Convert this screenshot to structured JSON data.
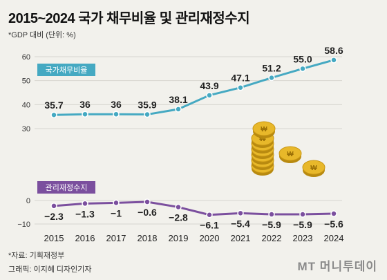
{
  "header": {
    "title": "2015~2024 국가 채무비율 및 관리재정수지",
    "subtitle": "*GDP 대비 (단위: %)"
  },
  "footer": {
    "source": "*자료: 기획재정부",
    "credit": "그래픽: 이지혜 디자인기자",
    "logo": "MT 머니투데이"
  },
  "colors": {
    "debt": "#45a9c2",
    "balance": "#7b4f9e",
    "coin": "#e8b82a"
  },
  "chart_data": [
    {
      "type": "line",
      "x": [
        "2015",
        "2016",
        "2017",
        "2018",
        "2019",
        "2020",
        "2021",
        "2022",
        "2023",
        "2024"
      ],
      "series": [
        {
          "name": "국가채무비율",
          "values": [
            35.7,
            36,
            36,
            35.9,
            38.1,
            43.9,
            47.1,
            51.2,
            55.0,
            58.6
          ],
          "labels": [
            "35.7",
            "36",
            "36",
            "35.9",
            "38.1",
            "43.9",
            "47.1",
            "51.2",
            "55.0",
            "58.6"
          ]
        }
      ],
      "yticks": [
        30,
        40,
        50,
        60
      ],
      "ylim": [
        30,
        60
      ],
      "grid": true
    },
    {
      "type": "line",
      "x": [
        "2015",
        "2016",
        "2017",
        "2018",
        "2019",
        "2020",
        "2021",
        "2022",
        "2023",
        "2024"
      ],
      "series": [
        {
          "name": "관리재정수지",
          "values": [
            -2.3,
            -1.3,
            -1,
            -0.6,
            -2.8,
            -6.1,
            -5.4,
            -5.9,
            -5.9,
            -5.6
          ],
          "labels": [
            "−2.3",
            "−1.3",
            "−1",
            "−0.6",
            "−2.8",
            "−6.1",
            "−5.4",
            "−5.9",
            "−5.9",
            "−5.6"
          ]
        }
      ],
      "yticks": [
        0,
        -10
      ],
      "ytick_labels": [
        "0",
        "−10"
      ],
      "ylim": [
        -10,
        0
      ],
      "grid": true
    }
  ]
}
